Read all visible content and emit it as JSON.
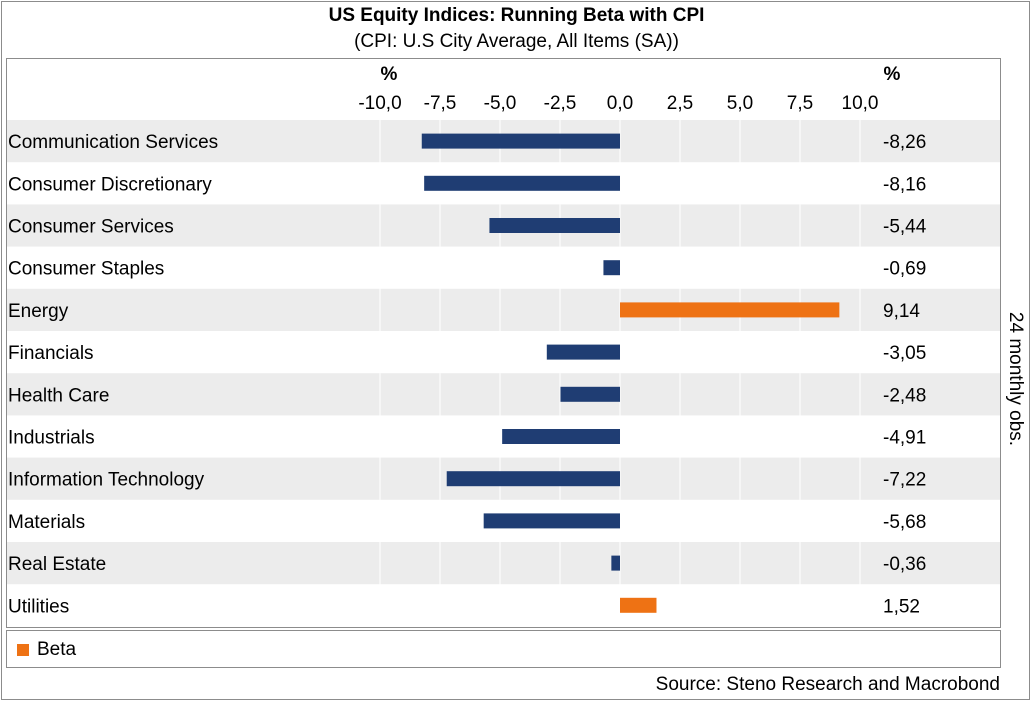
{
  "chart_data": {
    "type": "bar",
    "orientation": "horizontal",
    "title": "US Equity Indices: Running Beta with CPI",
    "subtitle": "(CPI: U.S City Average, All Items (SA))",
    "unit_left": "%",
    "unit_right": "%",
    "xlim": [
      -10,
      10
    ],
    "x_ticks": [
      -10,
      -7.5,
      -5,
      -2.5,
      0,
      2.5,
      5,
      7.5,
      10
    ],
    "x_tick_labels": [
      "-10,0",
      "-7,5",
      "-5,0",
      "-2,5",
      "0,0",
      "2,5",
      "5,0",
      "7,5",
      "10,0"
    ],
    "grid": true,
    "categories": [
      "Communication Services",
      "Consumer Discretionary",
      "Consumer Services",
      "Consumer Staples",
      "Energy",
      "Financials",
      "Health Care",
      "Industrials",
      "Information Technology",
      "Materials",
      "Real Estate",
      "Utilities"
    ],
    "series": [
      {
        "name": "Beta",
        "values": [
          -8.26,
          -8.16,
          -5.44,
          -0.69,
          9.14,
          -3.05,
          -2.48,
          -4.91,
          -7.22,
          -5.68,
          -0.36,
          1.52
        ],
        "value_labels": [
          "-8,26",
          "-8,16",
          "-5,44",
          "-0,69",
          "9,14",
          "-3,05",
          "-2,48",
          "-4,91",
          "-7,22",
          "-5,68",
          "-0,36",
          "1,52"
        ]
      }
    ],
    "colors": {
      "negative": "#1f3d73",
      "positive": "#ee7214",
      "band": "#ececec",
      "grid": "#ffffff"
    },
    "side_label": "24 monthly obs.",
    "legend": {
      "label": "Beta",
      "color": "#ee7214",
      "placement": "bottom"
    },
    "source": "Source: Steno Research and Macrobond"
  }
}
